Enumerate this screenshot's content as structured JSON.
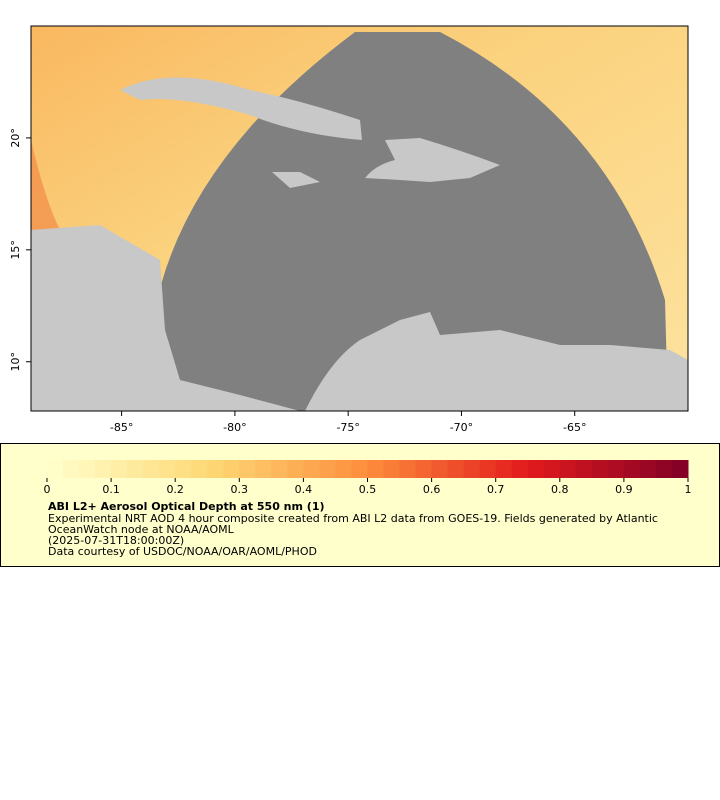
{
  "map": {
    "xlim": [
      -89,
      -60
    ],
    "ylim": [
      7.8,
      25
    ],
    "xticks": [
      {
        "value": -85,
        "label": "-85°"
      },
      {
        "value": -80,
        "label": "-80°"
      },
      {
        "value": -75,
        "label": "-75°"
      },
      {
        "value": -70,
        "label": "-70°"
      },
      {
        "value": -65,
        "label": "-65°"
      }
    ],
    "yticks": [
      {
        "value": 10,
        "label": "10°"
      },
      {
        "value": 15,
        "label": "15°"
      },
      {
        "value": 20,
        "label": "20°"
      }
    ]
  },
  "colorbar": {
    "lim": [
      0,
      1
    ],
    "ticks": [
      0,
      0.1,
      0.2,
      0.3,
      0.4,
      0.5,
      0.6,
      0.7,
      0.8,
      0.9,
      1
    ]
  },
  "legend": {
    "title": "ABI L2+ Aerosol Optical Depth at 550 nm (1)",
    "lines": [
      "Experimental NRT AOD 4 hour composite created from ABI L2 data from GOES-19. Fields generated by Atlantic",
      "OceanWatch node at NOAA/AOML",
      "(2025-07-31T18:00:00Z)",
      "Data courtesy of USDOC/NOAA/OAR/AOML/PHOD"
    ]
  }
}
